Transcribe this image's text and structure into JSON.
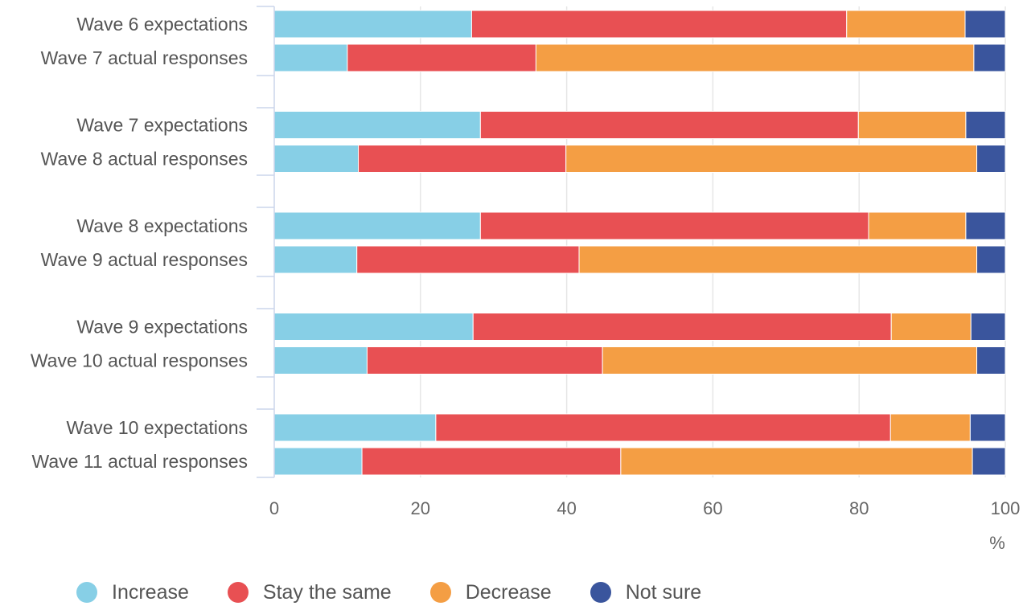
{
  "chart_data": {
    "type": "bar",
    "orientation": "horizontal",
    "stacked": true,
    "categories": [
      "Wave 6 expectations",
      "Wave 7 actual responses",
      "Wave 7 expectations",
      "Wave 8 actual responses",
      "Wave 8 expectations",
      "Wave 9 actual responses",
      "Wave 9 expectations",
      "Wave 10 actual responses",
      "Wave 10 expectations",
      "Wave 11 actual responses"
    ],
    "series": [
      {
        "name": "Increase",
        "color": "#87cfe6",
        "values": [
          27,
          10,
          28.2,
          11.5,
          28.2,
          11.3,
          27.2,
          12.7,
          22.1,
          12
        ]
      },
      {
        "name": "Stay the same",
        "color": "#e85053",
        "values": [
          51.3,
          25.8,
          51.7,
          28.4,
          53.1,
          30.4,
          57.2,
          32.2,
          62.2,
          35.4
        ]
      },
      {
        "name": "Decrease",
        "color": "#f49e44",
        "values": [
          16.2,
          59.9,
          14.7,
          56.2,
          13.3,
          54.4,
          10.9,
          51.2,
          10.9,
          48.1
        ]
      },
      {
        "name": "Not sure",
        "color": "#3a559d",
        "values": [
          5.5,
          4.3,
          5.4,
          3.9,
          5.4,
          3.9,
          4.7,
          3.9,
          4.8,
          4.5
        ]
      }
    ],
    "xlim": [
      0,
      100
    ],
    "xticks": [
      0,
      20,
      40,
      60,
      80,
      100
    ],
    "xunit": "%",
    "grid": true,
    "legend_position": "bottom-left"
  }
}
